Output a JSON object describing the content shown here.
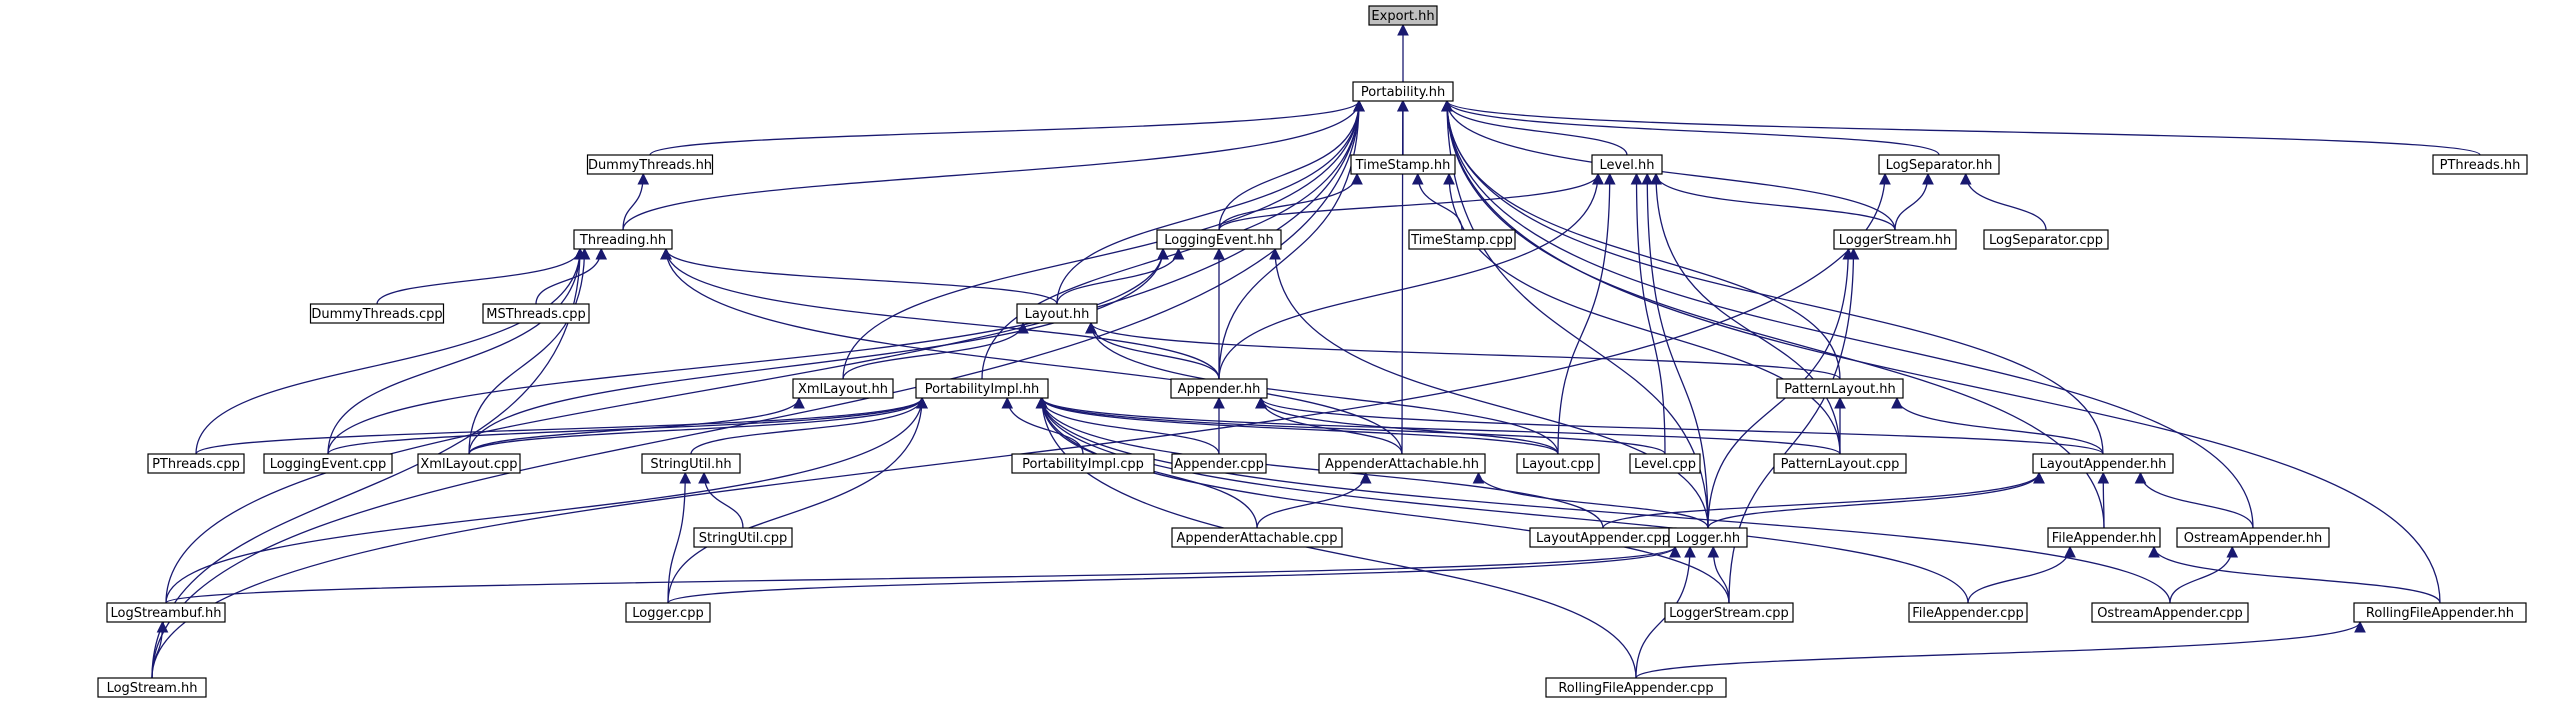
{
  "graph": {
    "root": "Export.hh",
    "nodes": [
      {
        "id": "export_hh",
        "label": "Export.hh"
      },
      {
        "id": "portability_hh",
        "label": "Portability.hh"
      },
      {
        "id": "dummythreads_hh",
        "label": "DummyThreads.hh"
      },
      {
        "id": "timestamp_hh",
        "label": "TimeStamp.hh"
      },
      {
        "id": "level_hh",
        "label": "Level.hh"
      },
      {
        "id": "logseparator_hh",
        "label": "LogSeparator.hh"
      },
      {
        "id": "pthreads_hh",
        "label": "PThreads.hh"
      },
      {
        "id": "threading_hh",
        "label": "Threading.hh"
      },
      {
        "id": "loggingevent_hh",
        "label": "LoggingEvent.hh"
      },
      {
        "id": "timestamp_cpp",
        "label": "TimeStamp.cpp"
      },
      {
        "id": "loggerstream_hh",
        "label": "LoggerStream.hh"
      },
      {
        "id": "logseparator_cpp",
        "label": "LogSeparator.cpp"
      },
      {
        "id": "dummythreads_cpp",
        "label": "DummyThreads.cpp"
      },
      {
        "id": "msthreads_cpp",
        "label": "MSThreads.cpp"
      },
      {
        "id": "layout_hh",
        "label": "Layout.hh"
      },
      {
        "id": "xmllayout_hh",
        "label": "XmlLayout.hh"
      },
      {
        "id": "portabilityimpl_hh",
        "label": "PortabilityImpl.hh"
      },
      {
        "id": "appender_hh",
        "label": "Appender.hh"
      },
      {
        "id": "patternlayout_hh",
        "label": "PatternLayout.hh"
      },
      {
        "id": "pthreads_cpp",
        "label": "PThreads.cpp"
      },
      {
        "id": "loggingevent_cpp",
        "label": "LoggingEvent.cpp"
      },
      {
        "id": "xmllayout_cpp",
        "label": "XmlLayout.cpp"
      },
      {
        "id": "stringutil_hh",
        "label": "StringUtil.hh"
      },
      {
        "id": "portabilityimpl_cpp",
        "label": "PortabilityImpl.cpp"
      },
      {
        "id": "appender_cpp",
        "label": "Appender.cpp"
      },
      {
        "id": "appenderattachable_hh",
        "label": "AppenderAttachable.hh"
      },
      {
        "id": "layout_cpp",
        "label": "Layout.cpp"
      },
      {
        "id": "level_cpp",
        "label": "Level.cpp"
      },
      {
        "id": "patternlayout_cpp",
        "label": "PatternLayout.cpp"
      },
      {
        "id": "layoutappender_hh",
        "label": "LayoutAppender.hh"
      },
      {
        "id": "stringutil_cpp",
        "label": "StringUtil.cpp"
      },
      {
        "id": "appenderattachable_cpp",
        "label": "AppenderAttachable.cpp"
      },
      {
        "id": "layoutappender_cpp",
        "label": "LayoutAppender.cpp"
      },
      {
        "id": "logger_hh",
        "label": "Logger.hh"
      },
      {
        "id": "fileappender_hh",
        "label": "FileAppender.hh"
      },
      {
        "id": "ostreamappender_hh",
        "label": "OstreamAppender.hh"
      },
      {
        "id": "logstreambuf_hh",
        "label": "LogStreambuf.hh"
      },
      {
        "id": "logger_cpp",
        "label": "Logger.cpp"
      },
      {
        "id": "loggerstream_cpp",
        "label": "LoggerStream.cpp"
      },
      {
        "id": "fileappender_cpp",
        "label": "FileAppender.cpp"
      },
      {
        "id": "ostreamappender_cpp",
        "label": "OstreamAppender.cpp"
      },
      {
        "id": "rollingfileappender_hh",
        "label": "RollingFileAppender.hh"
      },
      {
        "id": "logstream_hh",
        "label": "LogStream.hh"
      },
      {
        "id": "rollingfileappender_cpp",
        "label": "RollingFileAppender.cpp"
      }
    ],
    "edges": [
      [
        "portability_hh",
        "export_hh"
      ],
      [
        "dummythreads_hh",
        "portability_hh"
      ],
      [
        "timestamp_hh",
        "portability_hh"
      ],
      [
        "level_hh",
        "portability_hh"
      ],
      [
        "logseparator_hh",
        "portability_hh"
      ],
      [
        "pthreads_hh",
        "portability_hh"
      ],
      [
        "threading_hh",
        "portability_hh"
      ],
      [
        "loggingevent_hh",
        "portability_hh"
      ],
      [
        "loggerstream_hh",
        "portability_hh"
      ],
      [
        "layout_hh",
        "portability_hh"
      ],
      [
        "xmllayout_hh",
        "portability_hh"
      ],
      [
        "portabilityimpl_hh",
        "portability_hh"
      ],
      [
        "appender_hh",
        "portability_hh"
      ],
      [
        "patternlayout_hh",
        "portability_hh"
      ],
      [
        "appenderattachable_hh",
        "portability_hh"
      ],
      [
        "layoutappender_hh",
        "portability_hh"
      ],
      [
        "logger_hh",
        "portability_hh"
      ],
      [
        "fileappender_hh",
        "portability_hh"
      ],
      [
        "ostreamappender_hh",
        "portability_hh"
      ],
      [
        "logstreambuf_hh",
        "portability_hh"
      ],
      [
        "rollingfileappender_hh",
        "portability_hh"
      ],
      [
        "logstream_hh",
        "portability_hh"
      ],
      [
        "threading_hh",
        "dummythreads_hh"
      ],
      [
        "loggingevent_hh",
        "timestamp_hh"
      ],
      [
        "timestamp_cpp",
        "timestamp_hh"
      ],
      [
        "patternlayout_cpp",
        "timestamp_hh"
      ],
      [
        "loggingevent_hh",
        "level_hh"
      ],
      [
        "loggerstream_hh",
        "level_hh"
      ],
      [
        "appender_hh",
        "level_hh"
      ],
      [
        "layout_cpp",
        "level_hh"
      ],
      [
        "level_cpp",
        "level_hh"
      ],
      [
        "patternlayout_cpp",
        "level_hh"
      ],
      [
        "logger_hh",
        "level_hh"
      ],
      [
        "loggerstream_hh",
        "logseparator_hh"
      ],
      [
        "logseparator_cpp",
        "logseparator_hh"
      ],
      [
        "logstream_hh",
        "logseparator_hh"
      ],
      [
        "dummythreads_cpp",
        "threading_hh"
      ],
      [
        "msthreads_cpp",
        "threading_hh"
      ],
      [
        "layout_hh",
        "threading_hh"
      ],
      [
        "appender_hh",
        "threading_hh"
      ],
      [
        "pthreads_cpp",
        "threading_hh"
      ],
      [
        "loggingevent_cpp",
        "threading_hh"
      ],
      [
        "xmllayout_cpp",
        "threading_hh"
      ],
      [
        "appenderattachable_hh",
        "threading_hh"
      ],
      [
        "logstream_hh",
        "threading_hh"
      ],
      [
        "layout_hh",
        "loggingevent_hh"
      ],
      [
        "appender_hh",
        "loggingevent_hh"
      ],
      [
        "loggingevent_cpp",
        "loggingevent_hh"
      ],
      [
        "xmllayout_cpp",
        "loggingevent_hh"
      ],
      [
        "logger_hh",
        "loggingevent_hh"
      ],
      [
        "logger_hh",
        "loggerstream_hh"
      ],
      [
        "loggerstream_cpp",
        "loggerstream_hh"
      ],
      [
        "xmllayout_hh",
        "layout_hh"
      ],
      [
        "appender_hh",
        "layout_hh"
      ],
      [
        "patternlayout_hh",
        "layout_hh"
      ],
      [
        "layout_cpp",
        "layout_hh"
      ],
      [
        "xmllayout_cpp",
        "xmllayout_hh"
      ],
      [
        "pthreads_cpp",
        "portabilityimpl_hh"
      ],
      [
        "loggingevent_cpp",
        "portabilityimpl_hh"
      ],
      [
        "xmllayout_cpp",
        "portabilityimpl_hh"
      ],
      [
        "stringutil_hh",
        "portabilityimpl_hh"
      ],
      [
        "portabilityimpl_cpp",
        "portabilityimpl_hh"
      ],
      [
        "appender_cpp",
        "portabilityimpl_hh"
      ],
      [
        "layout_cpp",
        "portabilityimpl_hh"
      ],
      [
        "level_cpp",
        "portabilityimpl_hh"
      ],
      [
        "patternlayout_cpp",
        "portabilityimpl_hh"
      ],
      [
        "appenderattachable_cpp",
        "portabilityimpl_hh"
      ],
      [
        "layoutappender_cpp",
        "portabilityimpl_hh"
      ],
      [
        "logger_cpp",
        "portabilityimpl_hh"
      ],
      [
        "loggerstream_cpp",
        "portabilityimpl_hh"
      ],
      [
        "fileappender_cpp",
        "portabilityimpl_hh"
      ],
      [
        "ostreamappender_cpp",
        "portabilityimpl_hh"
      ],
      [
        "rollingfileappender_cpp",
        "portabilityimpl_hh"
      ],
      [
        "appender_cpp",
        "appender_hh"
      ],
      [
        "appenderattachable_hh",
        "appender_hh"
      ],
      [
        "layoutappender_hh",
        "appender_hh"
      ],
      [
        "layout_cpp",
        "appender_hh"
      ],
      [
        "patternlayout_cpp",
        "patternlayout_hh"
      ],
      [
        "layoutappender_hh",
        "patternlayout_hh"
      ],
      [
        "logstreambuf_hh",
        "portabilityimpl_hh"
      ],
      [
        "stringutil_cpp",
        "stringutil_hh"
      ],
      [
        "logger_cpp",
        "stringutil_hh"
      ],
      [
        "appenderattachable_cpp",
        "appenderattachable_hh"
      ],
      [
        "logger_hh",
        "appenderattachable_hh"
      ],
      [
        "layoutappender_cpp",
        "layoutappender_hh"
      ],
      [
        "fileappender_hh",
        "layoutappender_hh"
      ],
      [
        "ostreamappender_hh",
        "layoutappender_hh"
      ],
      [
        "logger_hh",
        "layoutappender_hh"
      ],
      [
        "logstreambuf_hh",
        "logger_hh"
      ],
      [
        "logger_cpp",
        "logger_hh"
      ],
      [
        "loggerstream_cpp",
        "logger_hh"
      ],
      [
        "rollingfileappender_cpp",
        "logger_hh"
      ],
      [
        "fileappender_cpp",
        "fileappender_hh"
      ],
      [
        "rollingfileappender_hh",
        "fileappender_hh"
      ],
      [
        "ostreamappender_cpp",
        "ostreamappender_hh"
      ],
      [
        "logstream_hh",
        "logstreambuf_hh"
      ],
      [
        "rollingfileappender_cpp",
        "rollingfileappender_hh"
      ]
    ]
  }
}
